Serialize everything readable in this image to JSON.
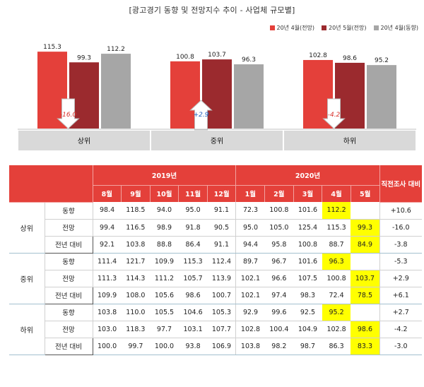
{
  "title": "[광고경기 동향 및 전망지수 추이 - 사업체 규모별]",
  "legend": [
    {
      "label": "20년 4월(전망)",
      "color": "#e4403a"
    },
    {
      "label": "20년 5월(전망)",
      "color": "#9b2a2e"
    },
    {
      "label": "20년 4월(동향)",
      "color": "#a6a6a6"
    }
  ],
  "chart_data": {
    "type": "bar",
    "categories": [
      "상위",
      "중위",
      "하위"
    ],
    "series": [
      {
        "name": "20년 4월(전망)",
        "values": [
          115.3,
          100.8,
          102.8
        ]
      },
      {
        "name": "20년 5월(전망)",
        "values": [
          99.3,
          103.7,
          98.6
        ]
      },
      {
        "name": "20년 4월(동향)",
        "values": [
          112.2,
          96.3,
          95.2
        ]
      }
    ],
    "annotations": [
      "-16.0",
      "+2.9",
      "-4.2"
    ],
    "annotation_directions": [
      "down",
      "up",
      "down"
    ],
    "ylim": [
      0,
      125
    ]
  },
  "table": {
    "year_headers": [
      "2019년",
      "2020년"
    ],
    "corner_right": "직전조사 대비",
    "months": [
      "8월",
      "9월",
      "10월",
      "11월",
      "12월",
      "1월",
      "2월",
      "3월",
      "4월",
      "5월"
    ],
    "groups": [
      {
        "segment": "상위",
        "rows": [
          {
            "label": "동향",
            "values": [
              "98.4",
              "118.5",
              "94.0",
              "95.0",
              "91.1",
              "72.3",
              "100.8",
              "101.6",
              "112.2",
              ""
            ],
            "diff": "+10.6"
          },
          {
            "label": "전망",
            "values": [
              "99.4",
              "116.5",
              "98.9",
              "91.8",
              "90.5",
              "95.0",
              "105.0",
              "125.4",
              "115.3",
              "99.3"
            ],
            "diff": "-16.0"
          },
          {
            "label": "전년 대비",
            "values": [
              "92.1",
              "103.8",
              "88.8",
              "86.4",
              "91.1",
              "94.4",
              "95.8",
              "100.8",
              "88.7",
              "84.9"
            ],
            "diff": "-3.8"
          }
        ]
      },
      {
        "segment": "중위",
        "rows": [
          {
            "label": "동향",
            "values": [
              "111.4",
              "121.7",
              "109.9",
              "115.3",
              "112.4",
              "89.7",
              "96.7",
              "101.6",
              "96.3",
              ""
            ],
            "diff": "-5.3"
          },
          {
            "label": "전망",
            "values": [
              "111.3",
              "114.3",
              "111.2",
              "105.7",
              "113.9",
              "102.1",
              "96.6",
              "107.5",
              "100.8",
              "103.7"
            ],
            "diff": "+2.9"
          },
          {
            "label": "전년 대비",
            "values": [
              "109.9",
              "108.0",
              "105.6",
              "98.6",
              "100.7",
              "102.1",
              "97.4",
              "98.3",
              "72.4",
              "78.5"
            ],
            "diff": "+6.1"
          }
        ]
      },
      {
        "segment": "하위",
        "rows": [
          {
            "label": "동향",
            "values": [
              "103.8",
              "110.0",
              "105.5",
              "104.6",
              "105.3",
              "92.9",
              "99.6",
              "92.5",
              "95.2",
              ""
            ],
            "diff": "+2.7"
          },
          {
            "label": "전망",
            "values": [
              "103.0",
              "118.3",
              "97.7",
              "103.1",
              "107.7",
              "102.8",
              "100.4",
              "104.9",
              "102.8",
              "98.6"
            ],
            "diff": "-4.2"
          },
          {
            "label": "전년 대비",
            "values": [
              "100.0",
              "99.7",
              "100.0",
              "93.8",
              "106.9",
              "103.8",
              "98.2",
              "98.7",
              "86.3",
              "83.3"
            ],
            "diff": "-3.0"
          }
        ]
      }
    ],
    "highlight_color": "#ffff00"
  }
}
